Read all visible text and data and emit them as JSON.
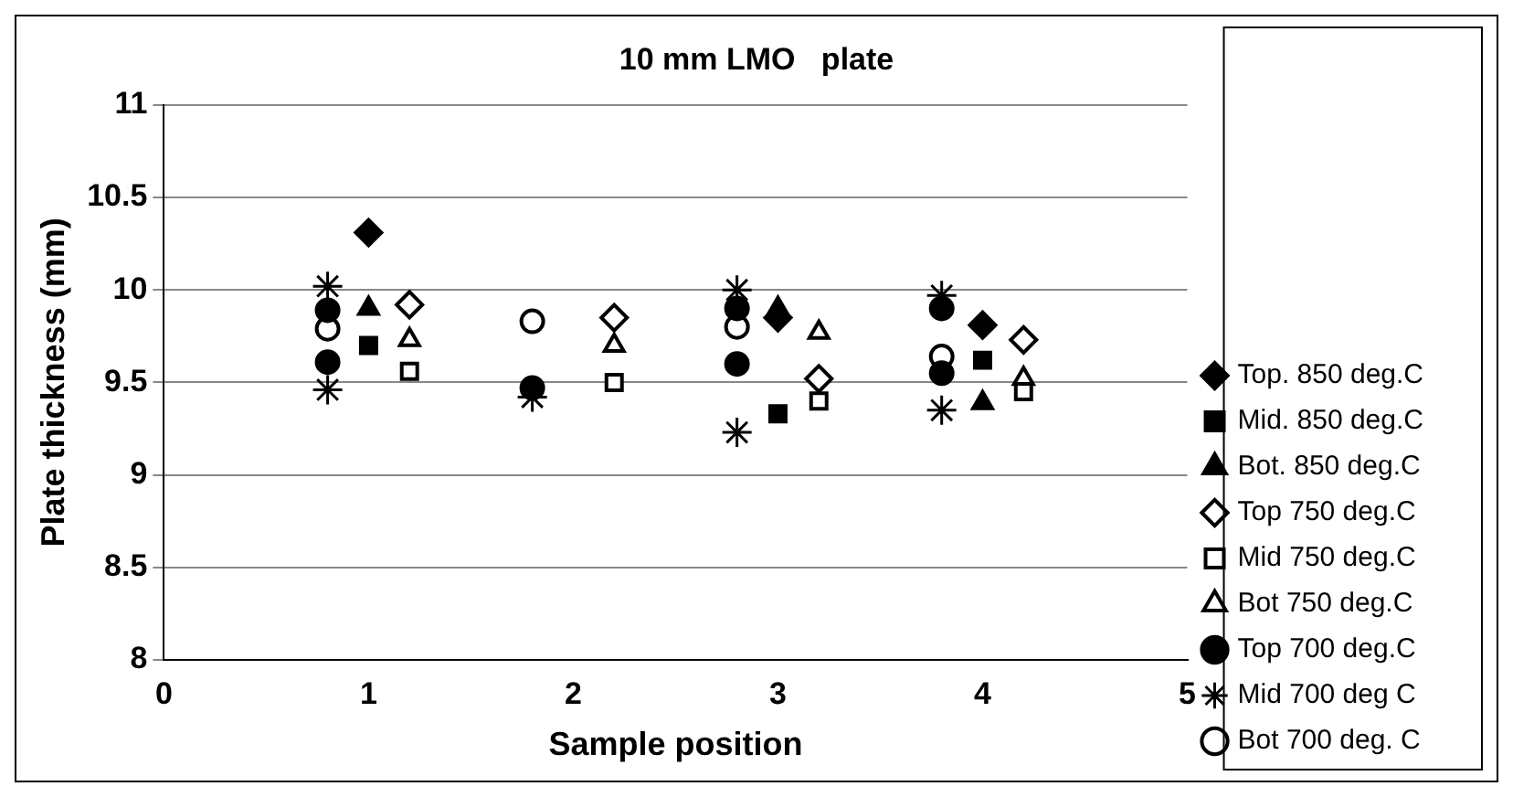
{
  "chart_data": {
    "type": "scatter",
    "title": "10 mm LMO   plate",
    "xlabel": "Sample position",
    "ylabel": "Plate thickness (mm)",
    "xlim": [
      0,
      5
    ],
    "xticks": [
      0,
      1,
      2,
      3,
      4,
      5
    ],
    "ylim": [
      8,
      11
    ],
    "yticks": [
      8,
      8.5,
      9,
      9.5,
      10,
      10.5,
      11
    ],
    "grid": "y",
    "legend": "right",
    "series": [
      {
        "name": "Top. 850 deg.C",
        "color": "#000000",
        "marker": "diamond",
        "x": [
          1,
          3,
          4
        ],
        "values": [
          10.31,
          9.85,
          9.81
        ]
      },
      {
        "name": "Mid. 850 deg.C",
        "color": "#000000",
        "marker": "square",
        "x": [
          1,
          3,
          4
        ],
        "values": [
          9.7,
          9.33,
          9.62
        ]
      },
      {
        "name": "Bot. 850 deg.C",
        "color": "#000000",
        "marker": "triangle",
        "x": [
          1,
          3,
          4
        ],
        "values": [
          9.9,
          9.9,
          9.39
        ]
      },
      {
        "name": "Top 750 deg.C",
        "color": "#ffffff",
        "marker": "diamond",
        "x": [
          1.2,
          2.2,
          3.2,
          4.2
        ],
        "values": [
          9.92,
          9.85,
          9.52,
          9.73
        ]
      },
      {
        "name": "Mid 750 deg.C",
        "color": "#ffffff",
        "marker": "square",
        "x": [
          1.2,
          2.2,
          3.2,
          4.2
        ],
        "values": [
          9.56,
          9.5,
          9.4,
          9.45
        ]
      },
      {
        "name": "Bot 750 deg.C",
        "color": "#ffffff",
        "marker": "triangle",
        "x": [
          1.2,
          2.2,
          3.2,
          4.2
        ],
        "values": [
          9.73,
          9.7,
          9.77,
          9.52
        ]
      },
      {
        "name": "Top 700 deg.C",
        "color": "#000000",
        "marker": "circle",
        "x": [
          0.8,
          0.8,
          1.8,
          2.8,
          2.8,
          3.8,
          3.8
        ],
        "values": [
          9.89,
          9.61,
          9.47,
          9.9,
          9.6,
          9.9,
          9.55
        ]
      },
      {
        "name": "Mid 700 deg C",
        "color": "#000000",
        "marker": "cross",
        "x": [
          0.8,
          0.8,
          1.8,
          2.8,
          2.8,
          3.8,
          3.8
        ],
        "values": [
          10.02,
          9.46,
          9.42,
          10.0,
          9.23,
          9.97,
          9.35
        ]
      },
      {
        "name": "Bot 700 deg. C",
        "color": "#ffffff",
        "marker": "circle",
        "x": [
          0.8,
          1.8,
          2.8,
          3.8
        ],
        "values": [
          9.79,
          9.83,
          9.8,
          9.64
        ]
      }
    ]
  }
}
